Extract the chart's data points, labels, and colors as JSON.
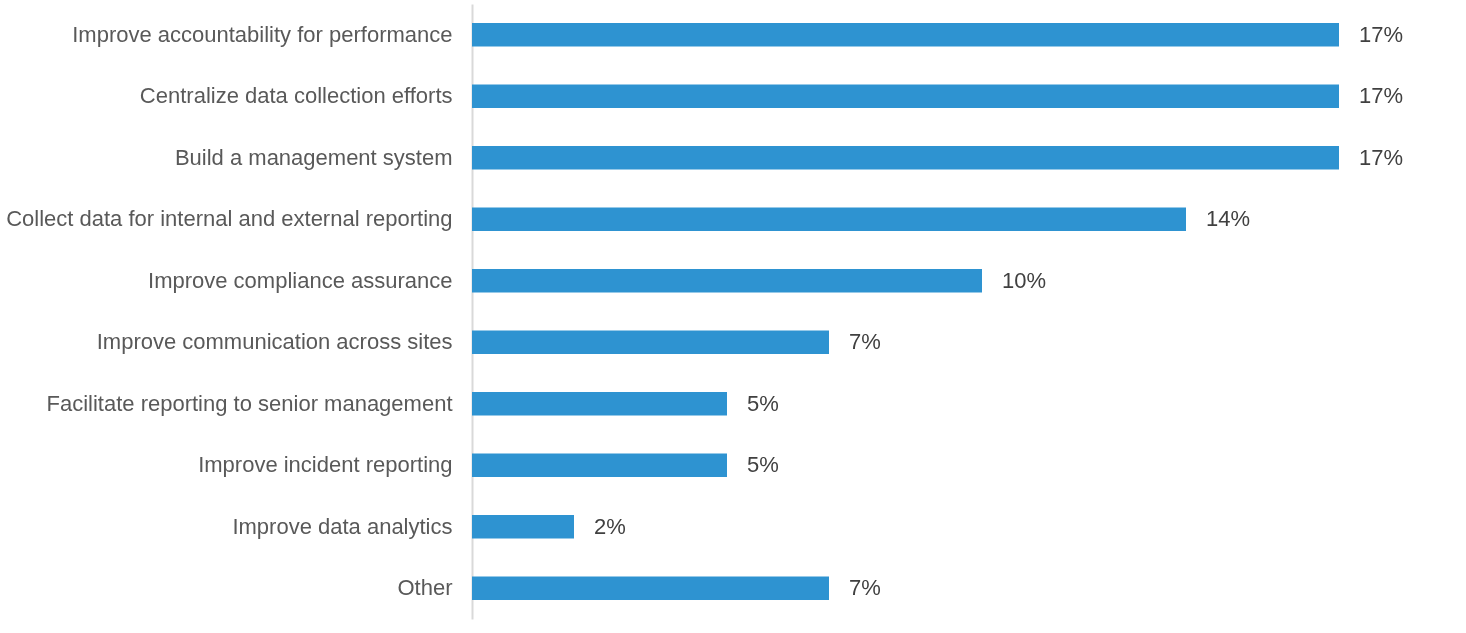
{
  "chart_data": {
    "type": "bar",
    "orientation": "horizontal",
    "categories": [
      "Improve accountability for performance",
      "Centralize data collection efforts",
      "Build a management system",
      "Collect data for internal and external reporting",
      "Improve compliance assurance",
      "Improve communication across sites",
      "Facilitate reporting to senior management",
      "Improve incident reporting",
      "Improve data analytics",
      "Other"
    ],
    "values": [
      17,
      17,
      17,
      14,
      10,
      7,
      5,
      5,
      2,
      7
    ],
    "value_labels": [
      "17%",
      "17%",
      "17%",
      "14%",
      "10%",
      "7%",
      "5%",
      "5%",
      "2%",
      "7%"
    ],
    "color": "#2e93d1"
  }
}
